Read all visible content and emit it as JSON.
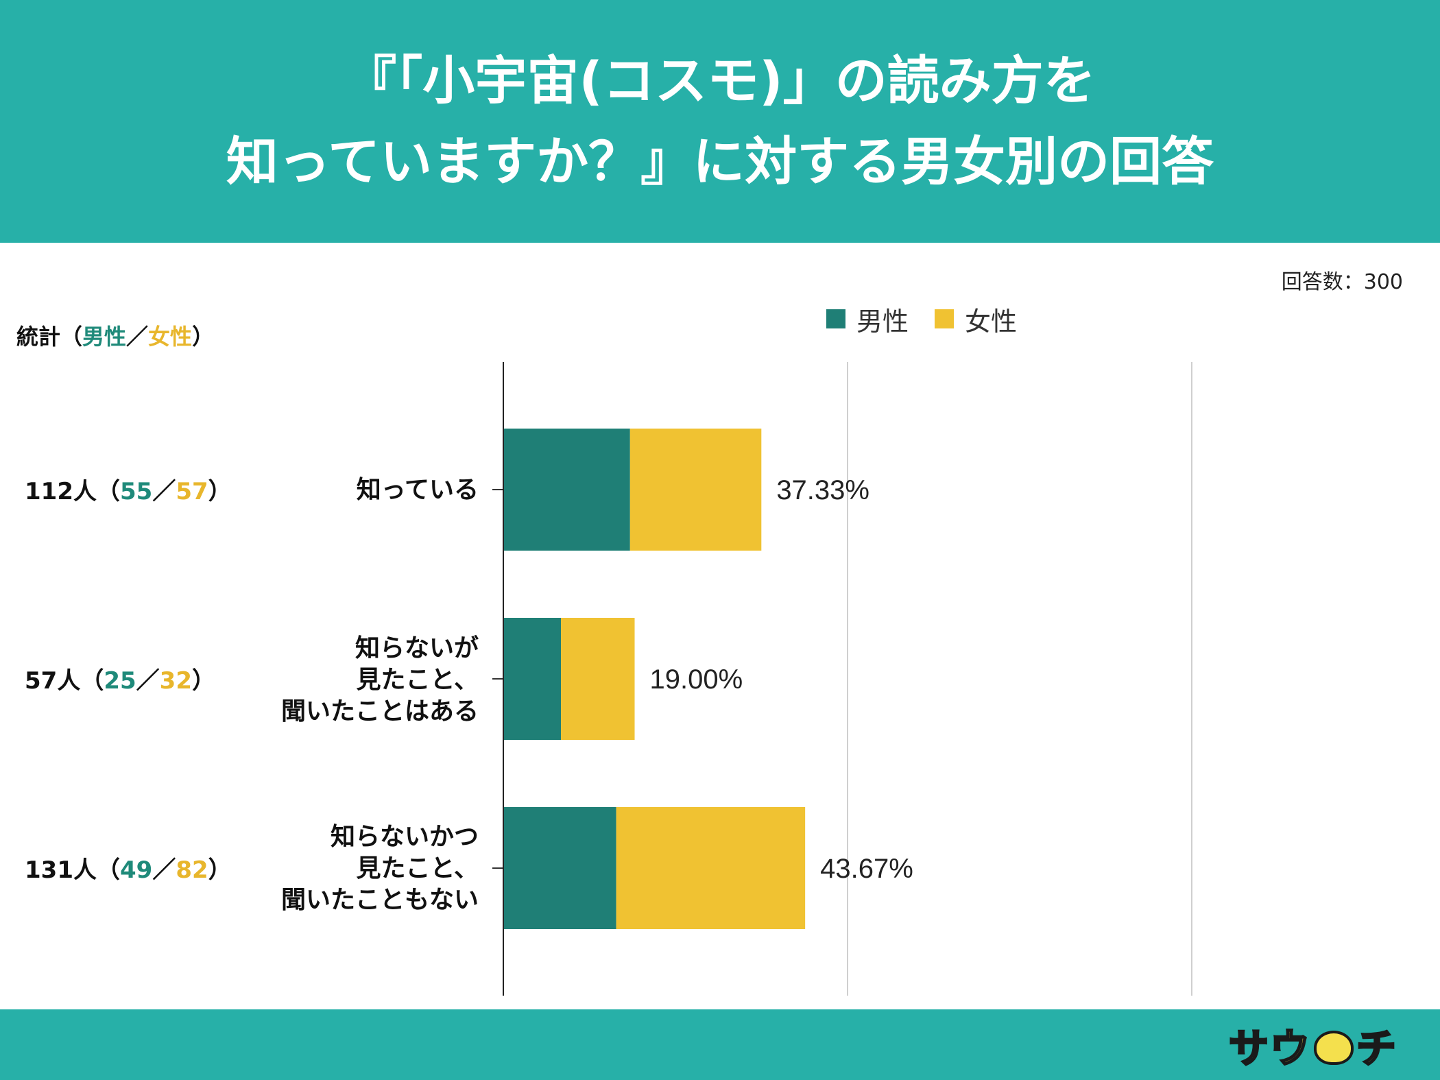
{
  "title": {
    "line1": "『「小宇宙(コスモ)」の読み方を",
    "line2": "知っていますか？』に対する男女別の回答"
  },
  "response_count": "回答数：300",
  "stats_header": {
    "label": "統計（",
    "male": "男性",
    "sep": "／",
    "female": "女性",
    "close": "）"
  },
  "legend": {
    "male": "男性",
    "female": "女性"
  },
  "colors": {
    "header_bg": "#27b0a8",
    "male": "#1f7f76",
    "female": "#f0c232",
    "male_text": "#1f8a7a",
    "female_text": "#e8b62c"
  },
  "rows": [
    {
      "label_lines": [
        "知っている"
      ],
      "total": "112人",
      "open": "（",
      "male": "55",
      "sep": "／",
      "female": "57",
      "close": "）",
      "percent": "37.33%"
    },
    {
      "label_lines": [
        "知らないが",
        "見たこと、",
        "聞いたことはある"
      ],
      "total": "57人",
      "open": "（",
      "male": "25",
      "sep": "／",
      "female": "32",
      "close": "）",
      "percent": "19.00%"
    },
    {
      "label_lines": [
        "知らないかつ",
        "見たこと、",
        "聞いたこともない"
      ],
      "total": "131人",
      "open": "（",
      "male": "49",
      "sep": "／",
      "female": "82",
      "close": "）",
      "percent": "43.67%"
    }
  ],
  "chart_data": {
    "type": "bar",
    "orientation": "horizontal",
    "stacked": true,
    "categories": [
      "知っている",
      "知らないが見たこと、聞いたことはある",
      "知らないかつ見たこと、聞いたこともない"
    ],
    "series": [
      {
        "name": "男性",
        "values": [
          55,
          25,
          49
        ]
      },
      {
        "name": "女性",
        "values": [
          57,
          32,
          82
        ]
      }
    ],
    "totals_percent": [
      37.33,
      19.0,
      43.67
    ],
    "xlim": [
      0,
      150
    ],
    "grid": true,
    "legend": "top"
  },
  "logo": {
    "text_left": "サウ",
    "text_right": "チ"
  }
}
